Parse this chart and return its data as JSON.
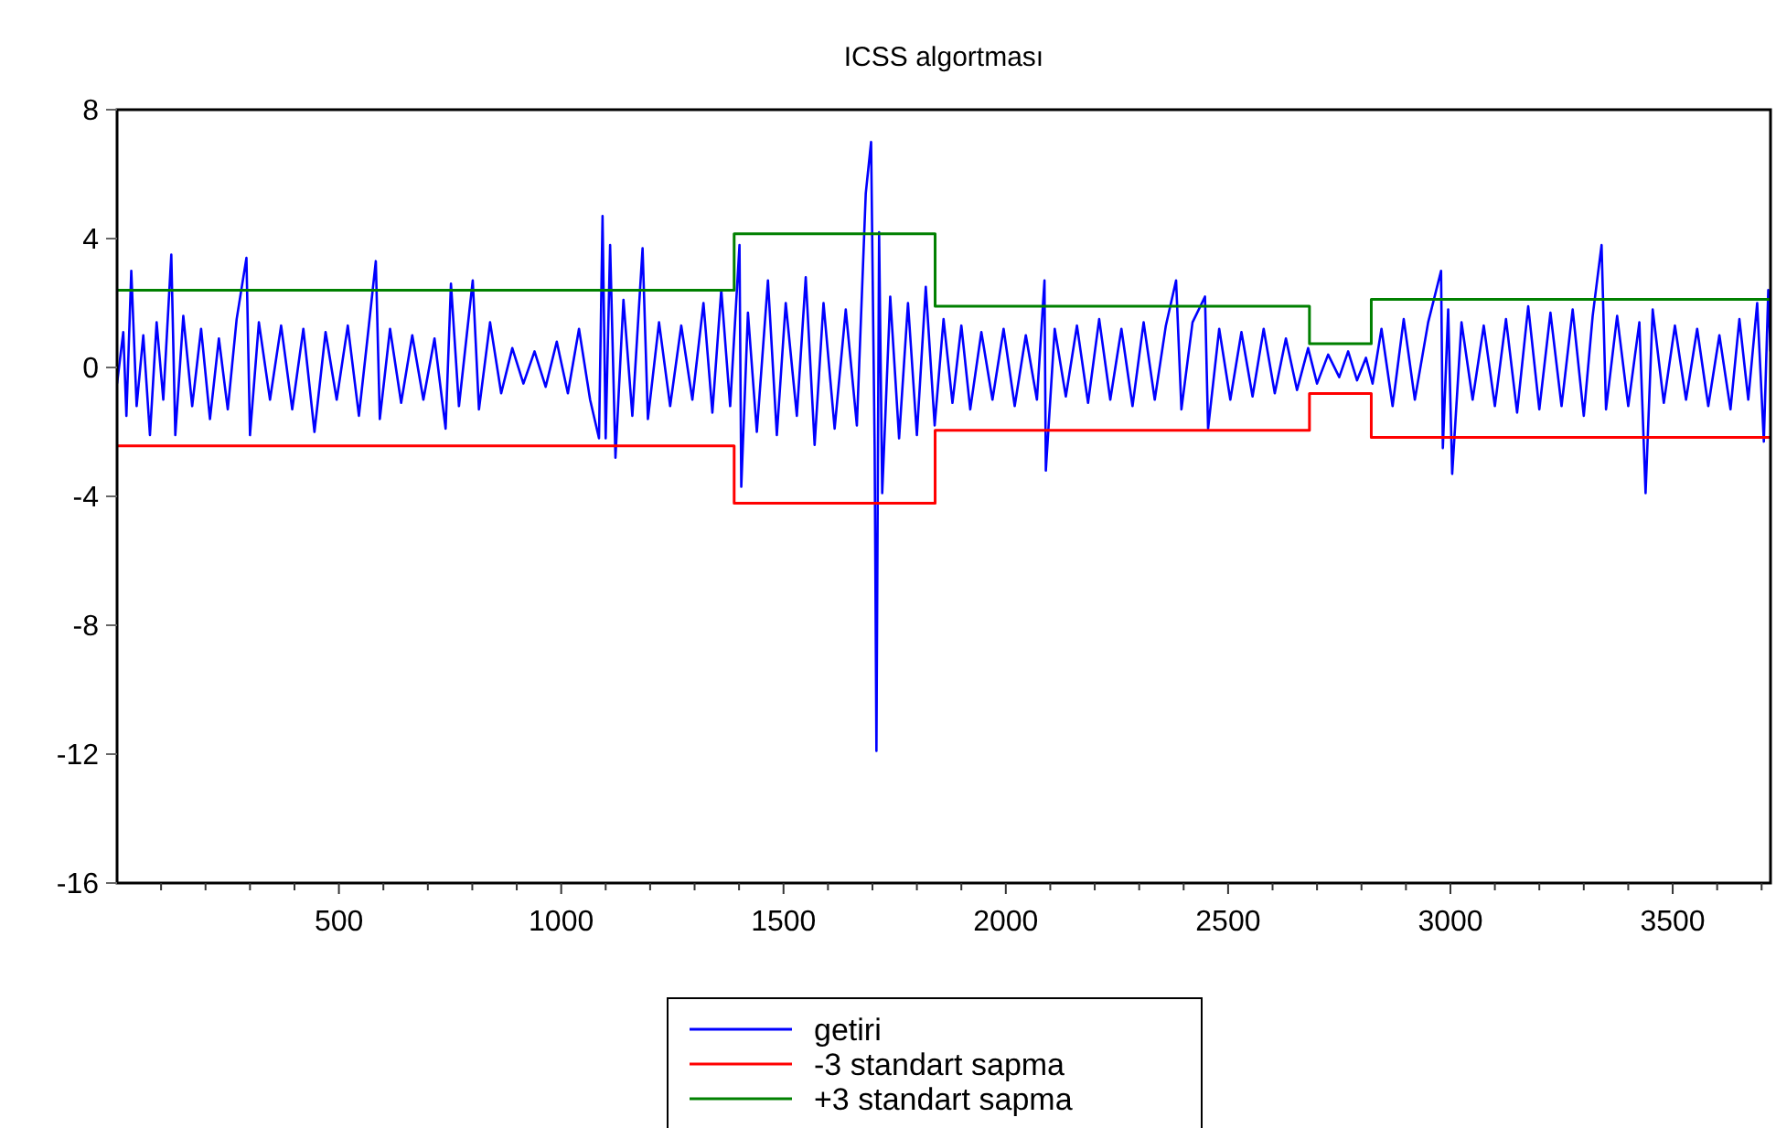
{
  "chart_data": {
    "type": "line",
    "title": "ICSS algortması",
    "xlim": [
      1,
      3720
    ],
    "ylim": [
      -16,
      8
    ],
    "xticks": [
      {
        "value": 100,
        "label": null
      },
      {
        "value": 200,
        "label": null
      },
      {
        "value": 300,
        "label": null
      },
      {
        "value": 400,
        "label": null
      },
      500,
      {
        "value": 600,
        "label": null
      },
      {
        "value": 700,
        "label": null
      },
      {
        "value": 800,
        "label": null
      },
      {
        "value": 900,
        "label": null
      },
      1000,
      {
        "value": 1100,
        "label": null
      },
      {
        "value": 1200,
        "label": null
      },
      {
        "value": 1300,
        "label": null
      },
      {
        "value": 1400,
        "label": null
      },
      1500,
      {
        "value": 1600,
        "label": null
      },
      {
        "value": 1700,
        "label": null
      },
      {
        "value": 1800,
        "label": null
      },
      {
        "value": 1900,
        "label": null
      },
      2000,
      {
        "value": 2100,
        "label": null
      },
      {
        "value": 2200,
        "label": null
      },
      {
        "value": 2300,
        "label": null
      },
      {
        "value": 2400,
        "label": null
      },
      2500,
      {
        "value": 2600,
        "label": null
      },
      {
        "value": 2700,
        "label": null
      },
      {
        "value": 2800,
        "label": null
      },
      {
        "value": 2900,
        "label": null
      },
      3000,
      {
        "value": 3100,
        "label": null
      },
      {
        "value": 3200,
        "label": null
      },
      {
        "value": 3300,
        "label": null
      },
      {
        "value": 3400,
        "label": null
      },
      3500,
      {
        "value": 3600,
        "label": null
      },
      {
        "value": 3700,
        "label": null
      }
    ],
    "yticks": [
      -16,
      -12,
      -8,
      -4,
      0,
      4,
      8
    ],
    "grid": false,
    "legend": "bottom",
    "line_style": "solid",
    "marker": "none",
    "series": [
      {
        "name": "getiri",
        "color": "#0000ff",
        "x": [
          1,
          15,
          22,
          33,
          45,
          60,
          75,
          90,
          105,
          123,
          132,
          150,
          170,
          190,
          210,
          230,
          250,
          270,
          292,
          300,
          320,
          345,
          370,
          395,
          420,
          445,
          470,
          495,
          520,
          545,
          565,
          583,
          592,
          615,
          640,
          665,
          690,
          715,
          740,
          752,
          770,
          801,
          815,
          840,
          865,
          890,
          915,
          940,
          965,
          990,
          1015,
          1040,
          1065,
          1085,
          1093,
          1100,
          1110,
          1122,
          1140,
          1160,
          1183,
          1195,
          1220,
          1245,
          1270,
          1295,
          1320,
          1340,
          1360,
          1380,
          1401,
          1405,
          1420,
          1440,
          1465,
          1485,
          1505,
          1530,
          1550,
          1570,
          1590,
          1615,
          1640,
          1665,
          1685,
          1697,
          1705,
          1709,
          1715,
          1722,
          1740,
          1760,
          1780,
          1800,
          1820,
          1840,
          1860,
          1880,
          1900,
          1920,
          1945,
          1970,
          1995,
          2020,
          2045,
          2070,
          2087,
          2090,
          2110,
          2135,
          2160,
          2185,
          2210,
          2235,
          2260,
          2285,
          2310,
          2335,
          2360,
          2383,
          2395,
          2420,
          2448,
          2455,
          2480,
          2505,
          2530,
          2555,
          2580,
          2605,
          2630,
          2655,
          2680,
          2700,
          2725,
          2750,
          2770,
          2790,
          2810,
          2825,
          2845,
          2870,
          2895,
          2920,
          2950,
          2979,
          2983,
          2995,
          3004,
          3025,
          3050,
          3075,
          3100,
          3125,
          3150,
          3175,
          3200,
          3225,
          3250,
          3275,
          3300,
          3320,
          3340,
          3350,
          3375,
          3400,
          3425,
          3439,
          3455,
          3480,
          3505,
          3530,
          3555,
          3580,
          3605,
          3630,
          3650,
          3670,
          3690,
          3705,
          3715,
          3720
        ],
        "values": [
          -0.5,
          1.1,
          -1.5,
          3.0,
          -1.2,
          1.0,
          -2.1,
          1.4,
          -1.0,
          3.5,
          -2.1,
          1.6,
          -1.2,
          1.2,
          -1.6,
          0.9,
          -1.3,
          1.5,
          3.4,
          -2.1,
          1.4,
          -1.0,
          1.3,
          -1.3,
          1.2,
          -2.0,
          1.1,
          -1.0,
          1.3,
          -1.5,
          1.0,
          3.3,
          -1.6,
          1.2,
          -1.1,
          1.0,
          -1.0,
          0.9,
          -1.9,
          2.6,
          -1.2,
          2.7,
          -1.3,
          1.4,
          -0.8,
          0.6,
          -0.5,
          0.5,
          -0.6,
          0.8,
          -0.8,
          1.2,
          -1.0,
          -2.2,
          4.7,
          -2.2,
          3.8,
          -2.8,
          2.1,
          -1.5,
          3.7,
          -1.6,
          1.4,
          -1.2,
          1.3,
          -1.0,
          2.0,
          -1.4,
          2.4,
          -1.2,
          3.8,
          -3.7,
          1.7,
          -2.0,
          2.7,
          -2.1,
          2.0,
          -1.5,
          2.8,
          -2.4,
          2.0,
          -1.9,
          1.8,
          -1.8,
          5.4,
          7.0,
          -2.5,
          -11.9,
          4.2,
          -3.9,
          2.2,
          -2.2,
          2.0,
          -2.1,
          2.5,
          -1.8,
          1.5,
          -1.1,
          1.3,
          -1.3,
          1.1,
          -1.0,
          1.2,
          -1.2,
          1.0,
          -1.0,
          2.7,
          -3.2,
          1.2,
          -0.9,
          1.3,
          -1.1,
          1.5,
          -1.0,
          1.2,
          -1.2,
          1.4,
          -1.0,
          1.3,
          2.7,
          -1.3,
          1.4,
          2.2,
          -1.9,
          1.2,
          -1.0,
          1.1,
          -0.9,
          1.2,
          -0.8,
          0.9,
          -0.7,
          0.6,
          -0.5,
          0.4,
          -0.3,
          0.5,
          -0.4,
          0.3,
          -0.5,
          1.2,
          -1.2,
          1.5,
          -1.0,
          1.4,
          3.0,
          -2.5,
          1.8,
          -3.3,
          1.4,
          -1.0,
          1.3,
          -1.2,
          1.5,
          -1.4,
          1.9,
          -1.3,
          1.7,
          -1.2,
          1.8,
          -1.5,
          1.6,
          3.8,
          -1.3,
          1.6,
          -1.2,
          1.4,
          -3.9,
          1.8,
          -1.1,
          1.3,
          -1.0,
          1.2,
          -1.2,
          1.0,
          -1.3,
          1.5,
          -1.0,
          2.0,
          -2.3,
          2.4,
          0.5
        ]
      },
      {
        "name": "-3 standart sapma",
        "type": "step",
        "color": "#ff0000",
        "x": [
          1,
          1389,
          1841,
          2683,
          2822,
          3720
        ],
        "values": [
          -2.43,
          -4.21,
          -1.95,
          -0.81,
          -2.17,
          -2.17
        ]
      },
      {
        "name": "+3 standart sapma",
        "type": "step",
        "color": "#008000",
        "x": [
          1,
          1389,
          1841,
          2683,
          2822,
          3720
        ],
        "values": [
          2.4,
          4.15,
          1.9,
          0.74,
          2.11,
          2.11
        ]
      }
    ]
  }
}
